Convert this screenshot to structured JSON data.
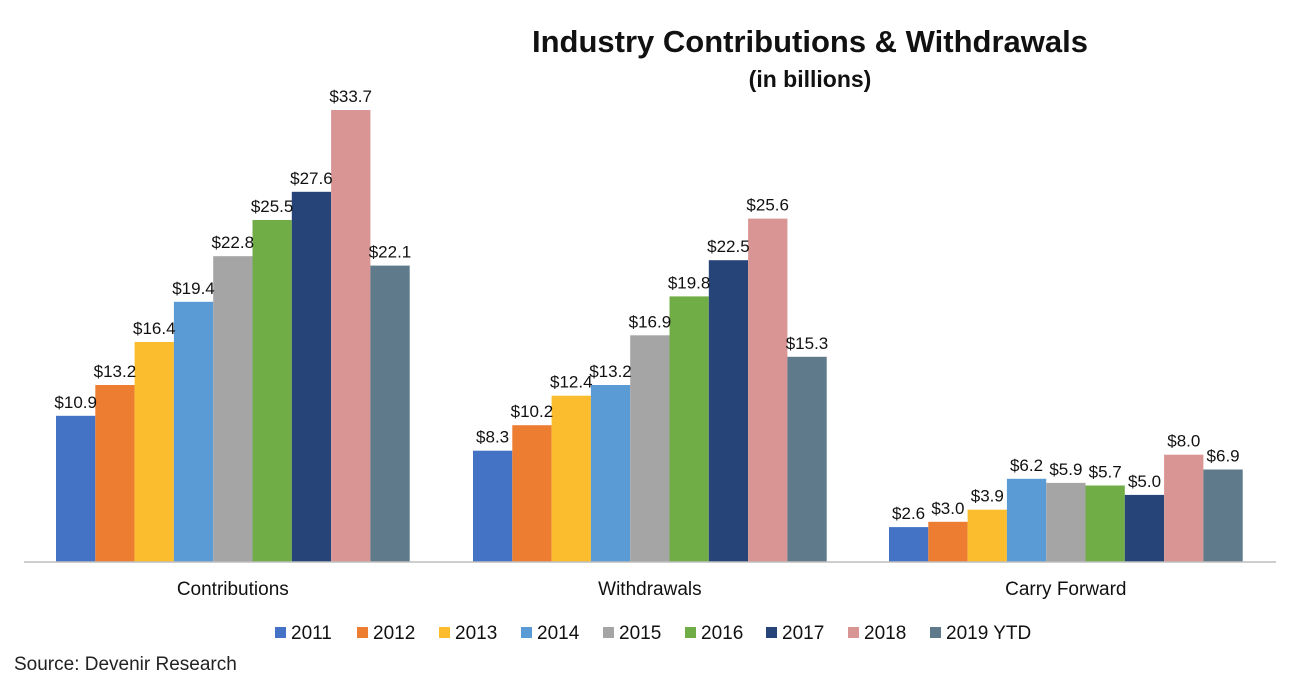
{
  "chart_data": {
    "type": "bar",
    "title": "Industry Contributions & Withdrawals",
    "subtitle": "(in billions)",
    "categories": [
      "Contributions",
      "Withdrawals",
      "Carry Forward"
    ],
    "series": [
      {
        "name": "2011",
        "color": "#4472C4",
        "values": [
          10.9,
          8.3,
          2.6
        ]
      },
      {
        "name": "2012",
        "color": "#ED7D31",
        "values": [
          13.2,
          10.2,
          3.0
        ]
      },
      {
        "name": "2013",
        "color": "#FBBD2D",
        "values": [
          16.4,
          12.4,
          3.9
        ]
      },
      {
        "name": "2014",
        "color": "#5B9BD5",
        "values": [
          19.4,
          13.2,
          6.2
        ]
      },
      {
        "name": "2015",
        "color": "#A5A5A5",
        "values": [
          22.8,
          16.9,
          5.9
        ]
      },
      {
        "name": "2016",
        "color": "#70AD47",
        "values": [
          25.5,
          19.8,
          5.7
        ]
      },
      {
        "name": "2017",
        "color": "#264478",
        "values": [
          27.6,
          22.5,
          5.0
        ]
      },
      {
        "name": "2018",
        "color": "#D99594",
        "values": [
          33.7,
          25.6,
          8.0
        ]
      },
      {
        "name": "2019 YTD",
        "color": "#5F7A8A",
        "values": [
          22.1,
          15.3,
          6.9
        ]
      }
    ],
    "data_labels": [
      [
        "$10.9",
        "$8.3",
        "$2.6"
      ],
      [
        "$13.2",
        "$10.2",
        "$3.0"
      ],
      [
        "$16.4",
        "$12.4",
        "$3.9"
      ],
      [
        "$19.4",
        "$13.2",
        "$6.2"
      ],
      [
        "$22.8",
        "$16.9",
        "$5.9"
      ],
      [
        "$25.5",
        "$19.8",
        "$5.7"
      ],
      [
        "$27.6",
        "$22.5",
        "$5.0"
      ],
      [
        "$33.7",
        "$25.6",
        "$8.0"
      ],
      [
        "$22.1",
        "$15.3",
        "$6.9"
      ]
    ],
    "ylim": [
      0,
      33.7
    ],
    "grid": false,
    "legend_position": "bottom"
  },
  "source": "Source: Devenir Research"
}
